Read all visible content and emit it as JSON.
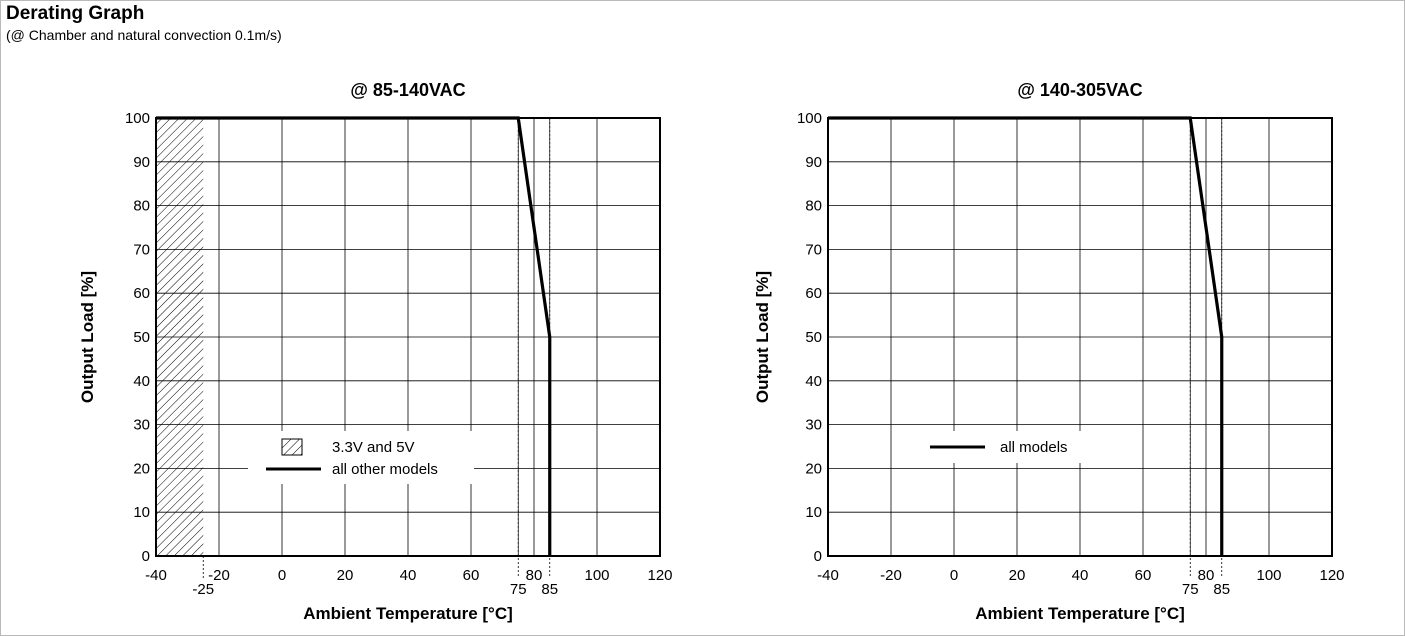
{
  "header": {
    "title": "Derating Graph",
    "subtitle": "(@ Chamber and natural convection 0.1m/s)"
  },
  "chart_data": [
    {
      "type": "line",
      "title": "@ 85-140VAC",
      "xlabel": "Ambient Temperature [°C]",
      "ylabel": "Output Load [%]",
      "xlim": [
        -40,
        120
      ],
      "ylim": [
        0,
        100
      ],
      "x_ticks": [
        -40,
        -20,
        0,
        20,
        40,
        60,
        80,
        100,
        120
      ],
      "y_ticks": [
        0,
        10,
        20,
        30,
        40,
        50,
        60,
        70,
        80,
        90,
        100
      ],
      "extra_x_labels": [
        -25,
        75,
        85
      ],
      "extra_vlines": [
        75,
        85
      ],
      "grid": true,
      "series": [
        {
          "name": "all other models",
          "x": [
            -40,
            75,
            85,
            85
          ],
          "y": [
            100,
            100,
            50,
            0
          ]
        }
      ],
      "region": {
        "name": "3.3V and 5V",
        "x_from": -40,
        "x_to": -25,
        "y_from": 0,
        "y_to": 100
      },
      "legend": [
        {
          "kind": "hatch",
          "label": "3.3V and 5V"
        },
        {
          "kind": "line",
          "label": "all other models"
        }
      ]
    },
    {
      "type": "line",
      "title": "@ 140-305VAC",
      "xlabel": "Ambient Temperature [°C]",
      "ylabel": "Output Load [%]",
      "xlim": [
        -40,
        120
      ],
      "ylim": [
        0,
        100
      ],
      "x_ticks": [
        -40,
        -20,
        0,
        20,
        40,
        60,
        80,
        100,
        120
      ],
      "y_ticks": [
        0,
        10,
        20,
        30,
        40,
        50,
        60,
        70,
        80,
        90,
        100
      ],
      "extra_x_labels": [
        75,
        85
      ],
      "extra_vlines": [
        75,
        85
      ],
      "grid": true,
      "series": [
        {
          "name": "all models",
          "x": [
            -40,
            75,
            85,
            85
          ],
          "y": [
            100,
            100,
            50,
            0
          ]
        }
      ],
      "legend": [
        {
          "kind": "line",
          "label": "all models"
        }
      ]
    }
  ]
}
